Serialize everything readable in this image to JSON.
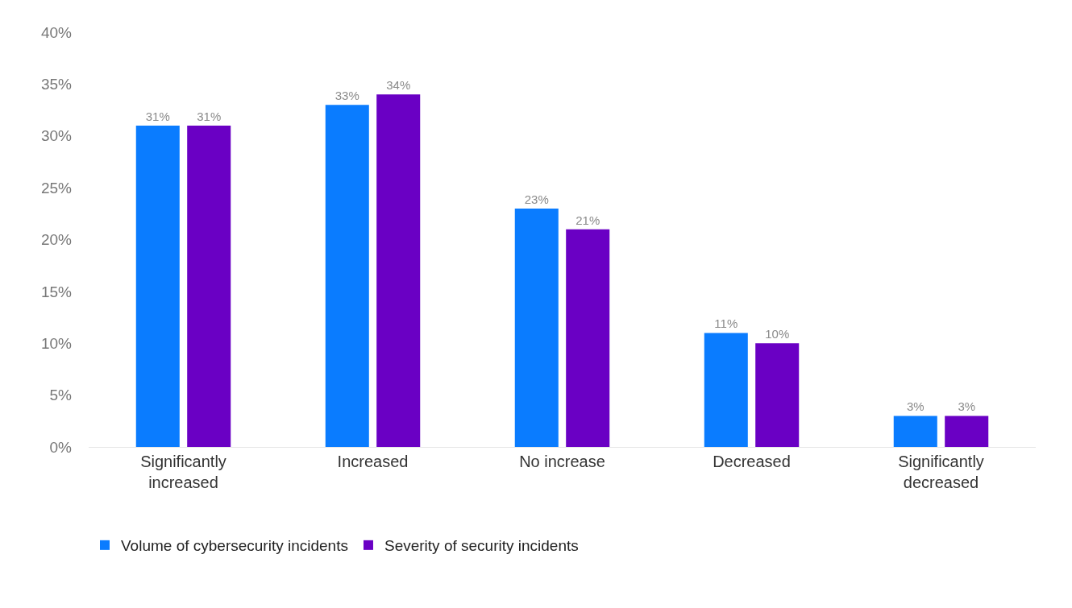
{
  "chart_data": {
    "type": "bar",
    "categories": [
      "Significantly increased",
      "Increased",
      "No increase",
      "Decreased",
      "Significantly decreased"
    ],
    "series": [
      {
        "name": "Volume of cybersecurity incidents",
        "color": "#0a7cff",
        "values": [
          31,
          33,
          23,
          11,
          3
        ],
        "value_labels": [
          "31%",
          "33%",
          "23%",
          "11%",
          "3%"
        ]
      },
      {
        "name": "Severity of security incidents",
        "color": "#6a00c4",
        "values": [
          31,
          34,
          21,
          10,
          3
        ],
        "value_labels": [
          "31%",
          "34%",
          "21%",
          "10%",
          "3%"
        ]
      }
    ],
    "ylim": [
      0,
      40
    ],
    "yticks": [
      {
        "value": 0,
        "label": "0%"
      },
      {
        "value": 5,
        "label": "5%"
      },
      {
        "value": 10,
        "label": "10%"
      },
      {
        "value": 15,
        "label": "15%"
      },
      {
        "value": 20,
        "label": "20%"
      },
      {
        "value": 25,
        "label": "25%"
      },
      {
        "value": 30,
        "label": "30%"
      },
      {
        "value": 35,
        "label": "35%"
      },
      {
        "value": 40,
        "label": "40%"
      }
    ],
    "legend": "bottom left"
  }
}
